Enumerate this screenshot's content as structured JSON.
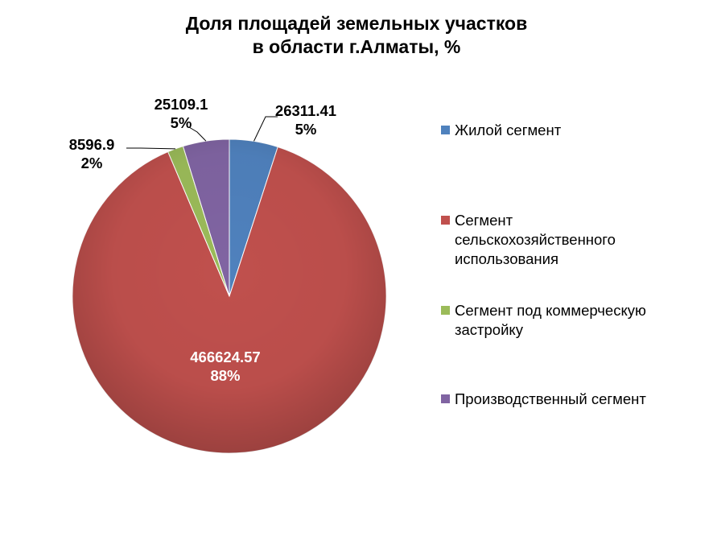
{
  "chart_data": {
    "type": "pie",
    "title": [
      "Доля площадей земельных участков",
      "в области г.Алматы, %"
    ],
    "categories": [
      "Жилой сегмент",
      "Сегмент сельскохозяйственного использования",
      "Сегмент под коммерческую застройку",
      "Производственный сегмент"
    ],
    "values": [
      26311.41,
      466624.57,
      8596.9,
      25109.1
    ],
    "value_labels": [
      "26311.41",
      "466624.57",
      "8596.9",
      "25109.1"
    ],
    "percent_labels": [
      "5%",
      "88%",
      "2%",
      "5%"
    ],
    "colors": [
      "#4f81bd",
      "#c0504d",
      "#9bbb59",
      "#8064a2"
    ],
    "legend_position": "right",
    "legend_lines": [
      [
        "Жилой сегмент"
      ],
      [
        "Сегмент",
        "сельскохозяйственного",
        "использования"
      ],
      [
        "Сегмент под коммерческую",
        "застройку"
      ],
      [
        "Производственный сегмент"
      ]
    ]
  }
}
